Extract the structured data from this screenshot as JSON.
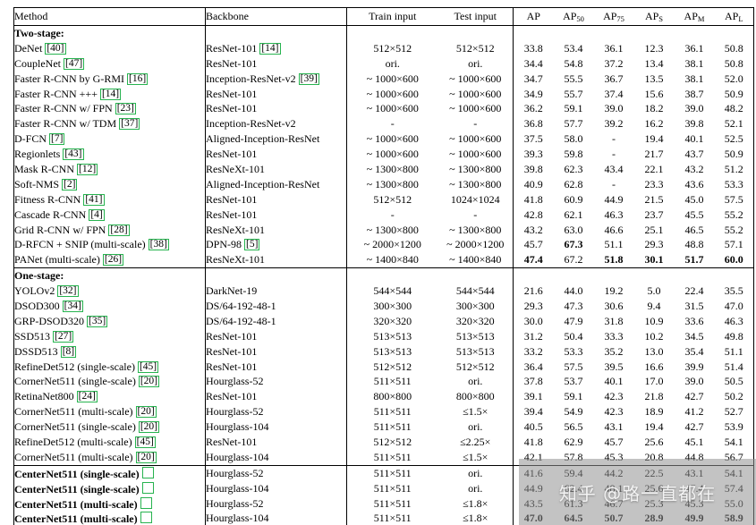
{
  "watermark": {
    "text": "知乎 @路一直都在"
  },
  "table": {
    "headers": [
      {
        "label": "Method"
      },
      {
        "label": "Backbone"
      },
      {
        "label": "Train input"
      },
      {
        "label": "Test input"
      },
      {
        "label": "AP"
      },
      {
        "label": "AP",
        "sub": "50"
      },
      {
        "label": "AP",
        "sub": "75"
      },
      {
        "label": "AP",
        "sub": "S"
      },
      {
        "label": "AP",
        "sub": "M"
      },
      {
        "label": "AP",
        "sub": "L"
      }
    ],
    "sections": [
      {
        "title": "Two-stage:",
        "rows": [
          {
            "method": "DeNet",
            "cite": "40",
            "backbone": "ResNet-101",
            "backbone_cite": "14",
            "train": "512×512",
            "test": "512×512",
            "metrics": [
              "33.8",
              "53.4",
              "36.1",
              "12.3",
              "36.1",
              "50.8"
            ]
          },
          {
            "method": "CoupleNet",
            "cite": "47",
            "backbone": "ResNet-101",
            "train": "ori.",
            "test": "ori.",
            "metrics": [
              "34.4",
              "54.8",
              "37.2",
              "13.4",
              "38.1",
              "50.8"
            ]
          },
          {
            "method": "Faster R-CNN by G-RMI",
            "cite": "16",
            "backbone": "Inception-ResNet-v2",
            "backbone_cite": "39",
            "train": "~ 1000×600",
            "test": "~ 1000×600",
            "metrics": [
              "34.7",
              "55.5",
              "36.7",
              "13.5",
              "38.1",
              "52.0"
            ]
          },
          {
            "method": "Faster R-CNN +++",
            "cite": "14",
            "backbone": "ResNet-101",
            "train": "~ 1000×600",
            "test": "~ 1000×600",
            "metrics": [
              "34.9",
              "55.7",
              "37.4",
              "15.6",
              "38.7",
              "50.9"
            ]
          },
          {
            "method": "Faster R-CNN w/ FPN",
            "cite": "23",
            "backbone": "ResNet-101",
            "train": "~ 1000×600",
            "test": "~ 1000×600",
            "metrics": [
              "36.2",
              "59.1",
              "39.0",
              "18.2",
              "39.0",
              "48.2"
            ]
          },
          {
            "method": "Faster R-CNN w/ TDM",
            "cite": "37",
            "backbone": "Inception-ResNet-v2",
            "train": "-",
            "test": "-",
            "metrics": [
              "36.8",
              "57.7",
              "39.2",
              "16.2",
              "39.8",
              "52.1"
            ]
          },
          {
            "method": "D-FCN",
            "cite": "7",
            "backbone": "Aligned-Inception-ResNet",
            "train": "~ 1000×600",
            "test": "~ 1000×600",
            "metrics": [
              "37.5",
              "58.0",
              "-",
              "19.4",
              "40.1",
              "52.5"
            ]
          },
          {
            "method": "Regionlets",
            "cite": "43",
            "backbone": "ResNet-101",
            "train": "~ 1000×600",
            "test": "~ 1000×600",
            "metrics": [
              "39.3",
              "59.8",
              "-",
              "21.7",
              "43.7",
              "50.9"
            ]
          },
          {
            "method": "Mask R-CNN",
            "cite": "12",
            "backbone": "ResNeXt-101",
            "train": "~ 1300×800",
            "test": "~ 1300×800",
            "metrics": [
              "39.8",
              "62.3",
              "43.4",
              "22.1",
              "43.2",
              "51.2"
            ]
          },
          {
            "method": "Soft-NMS",
            "cite": "2",
            "backbone": "Aligned-Inception-ResNet",
            "train": "~ 1300×800",
            "test": "~ 1300×800",
            "metrics": [
              "40.9",
              "62.8",
              "-",
              "23.3",
              "43.6",
              "53.3"
            ]
          },
          {
            "method": "Fitness R-CNN",
            "cite": "41",
            "backbone": "ResNet-101",
            "train": "512×512",
            "test": "1024×1024",
            "metrics": [
              "41.8",
              "60.9",
              "44.9",
              "21.5",
              "45.0",
              "57.5"
            ]
          },
          {
            "method": "Cascade R-CNN",
            "cite": "4",
            "backbone": "ResNet-101",
            "train": "-",
            "test": "-",
            "metrics": [
              "42.8",
              "62.1",
              "46.3",
              "23.7",
              "45.5",
              "55.2"
            ]
          },
          {
            "method": "Grid R-CNN w/ FPN",
            "cite": "28",
            "backbone": "ResNeXt-101",
            "train": "~ 1300×800",
            "test": "~ 1300×800",
            "metrics": [
              "43.2",
              "63.0",
              "46.6",
              "25.1",
              "46.5",
              "55.2"
            ]
          },
          {
            "method": "D-RFCN + SNIP (multi-scale)",
            "cite": "38",
            "backbone": "DPN-98",
            "backbone_cite": "5",
            "train": "~ 2000×1200",
            "test": "~ 2000×1200",
            "metrics": [
              "45.7",
              "67.3",
              "51.1",
              "29.3",
              "48.8",
              "57.1"
            ],
            "bold_metrics": [
              1
            ]
          },
          {
            "method": "PANet (multi-scale)",
            "cite": "26",
            "backbone": "ResNeXt-101",
            "train": "~ 1400×840",
            "test": "~ 1400×840",
            "metrics": [
              "47.4",
              "67.2",
              "51.8",
              "30.1",
              "51.7",
              "60.0"
            ],
            "bold_metrics": [
              0,
              2,
              3,
              4,
              5
            ]
          }
        ]
      },
      {
        "title": "One-stage:",
        "rows": [
          {
            "method": "YOLOv2",
            "cite": "32",
            "backbone": "DarkNet-19",
            "train": "544×544",
            "test": "544×544",
            "metrics": [
              "21.6",
              "44.0",
              "19.2",
              "5.0",
              "22.4",
              "35.5"
            ]
          },
          {
            "method": "DSOD300",
            "cite": "34",
            "backbone": "DS/64-192-48-1",
            "train": "300×300",
            "test": "300×300",
            "metrics": [
              "29.3",
              "47.3",
              "30.6",
              "9.4",
              "31.5",
              "47.0"
            ]
          },
          {
            "method": "GRP-DSOD320",
            "cite": "35",
            "backbone": "DS/64-192-48-1",
            "train": "320×320",
            "test": "320×320",
            "metrics": [
              "30.0",
              "47.9",
              "31.8",
              "10.9",
              "33.6",
              "46.3"
            ]
          },
          {
            "method": "SSD513",
            "cite": "27",
            "backbone": "ResNet-101",
            "train": "513×513",
            "test": "513×513",
            "metrics": [
              "31.2",
              "50.4",
              "33.3",
              "10.2",
              "34.5",
              "49.8"
            ]
          },
          {
            "method": "DSSD513",
            "cite": "8",
            "backbone": "ResNet-101",
            "train": "513×513",
            "test": "513×513",
            "metrics": [
              "33.2",
              "53.3",
              "35.2",
              "13.0",
              "35.4",
              "51.1"
            ]
          },
          {
            "method": "RefineDet512 (single-scale)",
            "cite": "45",
            "backbone": "ResNet-101",
            "train": "512×512",
            "test": "512×512",
            "metrics": [
              "36.4",
              "57.5",
              "39.5",
              "16.6",
              "39.9",
              "51.4"
            ]
          },
          {
            "method": "CornerNet511 (single-scale)",
            "cite": "20",
            "backbone": "Hourglass-52",
            "train": "511×511",
            "test": "ori.",
            "metrics": [
              "37.8",
              "53.7",
              "40.1",
              "17.0",
              "39.0",
              "50.5"
            ]
          },
          {
            "method": "RetinaNet800",
            "cite": "24",
            "backbone": "ResNet-101",
            "train": "800×800",
            "test": "800×800",
            "metrics": [
              "39.1",
              "59.1",
              "42.3",
              "21.8",
              "42.7",
              "50.2"
            ]
          },
          {
            "method": "CornerNet511 (multi-scale)",
            "cite": "20",
            "backbone": "Hourglass-52",
            "train": "511×511",
            "test": "≤1.5×",
            "metrics": [
              "39.4",
              "54.9",
              "42.3",
              "18.9",
              "41.2",
              "52.7"
            ]
          },
          {
            "method": "CornerNet511 (single-scale)",
            "cite": "20",
            "backbone": "Hourglass-104",
            "train": "511×511",
            "test": "ori.",
            "metrics": [
              "40.5",
              "56.5",
              "43.1",
              "19.4",
              "42.7",
              "53.9"
            ]
          },
          {
            "method": "RefineDet512 (multi-scale)",
            "cite": "45",
            "backbone": "ResNet-101",
            "train": "512×512",
            "test": "≤2.25×",
            "metrics": [
              "41.8",
              "62.9",
              "45.7",
              "25.6",
              "45.1",
              "54.1"
            ]
          },
          {
            "method": "CornerNet511 (multi-scale)",
            "cite": "20",
            "backbone": "Hourglass-104",
            "train": "511×511",
            "test": "≤1.5×",
            "metrics": [
              "42.1",
              "57.8",
              "45.3",
              "20.8",
              "44.8",
              "56.7"
            ]
          }
        ]
      },
      {
        "title": null,
        "divider": true,
        "rows": [
          {
            "method": "CenterNet511 (single-scale)",
            "method_bold": true,
            "cite": "",
            "backbone": "Hourglass-52",
            "train": "511×511",
            "test": "ori.",
            "metrics": [
              "41.6",
              "59.4",
              "44.2",
              "22.5",
              "43.1",
              "54.1"
            ]
          },
          {
            "method": "CenterNet511 (single-scale)",
            "method_bold": true,
            "cite": "",
            "backbone": "Hourglass-104",
            "train": "511×511",
            "test": "ori.",
            "metrics": [
              "44.9",
              "62.4",
              "48.1",
              "25.6",
              "47.4",
              "57.4"
            ]
          },
          {
            "method": "CenterNet511 (multi-scale)",
            "method_bold": true,
            "cite": "",
            "backbone": "Hourglass-52",
            "train": "511×511",
            "test": "≤1.8×",
            "metrics": [
              "43.5",
              "61.3",
              "46.7",
              "25.3",
              "45.3",
              "55.0"
            ]
          },
          {
            "method": "CenterNet511 (multi-scale)",
            "method_bold": true,
            "cite": "",
            "backbone": "Hourglass-104",
            "train": "511×511",
            "test": "≤1.8×",
            "metrics": [
              "47.0",
              "64.5",
              "50.7",
              "28.9",
              "49.9",
              "58.9"
            ],
            "bold_metrics": [
              0,
              1,
              2,
              3,
              4,
              5
            ]
          }
        ]
      }
    ]
  }
}
